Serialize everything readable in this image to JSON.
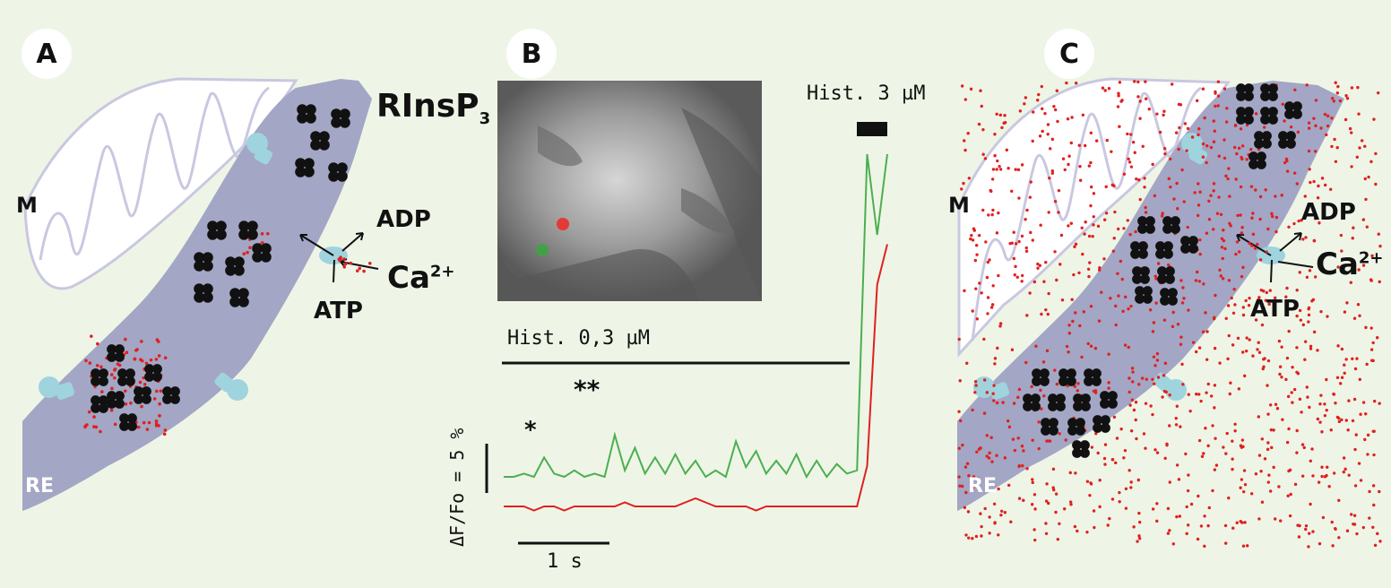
{
  "panels": {
    "a": {
      "label": "A",
      "organelle_m": "M",
      "organelle_re": "RE",
      "receptor": "RInsP",
      "receptor_sub": "3",
      "adp": "ADP",
      "ca": "Ca",
      "ca_sup": "2+",
      "atp": "ATP"
    },
    "b": {
      "label": "B",
      "hist_high": "Hist. 3 µM",
      "hist_low": "Hist. 0,3 µM",
      "star1": "*",
      "star2": "**",
      "ylabel": "ΔF/Fo = 5 %",
      "scale_time": "1 s"
    },
    "c": {
      "label": "C",
      "organelle_m": "M",
      "organelle_re": "RE",
      "adp": "ADP",
      "ca": "Ca",
      "ca_sup": "2+",
      "atp": "ATP"
    }
  },
  "colors": {
    "background": "#eef5e6",
    "er": "#a3a6c4",
    "mito": "#c9c8e0",
    "pump": "#9fd3de",
    "calcium": "#e02020",
    "green_trace": "#4caf50",
    "red_trace": "#e02020"
  },
  "chart_data": {
    "type": "line",
    "series": [
      {
        "color": "green",
        "values": [
          0,
          0,
          1,
          0,
          6,
          1,
          0,
          2,
          0,
          1,
          0,
          13,
          2,
          9,
          1,
          6,
          1,
          7,
          1,
          5,
          0,
          2,
          0,
          11,
          3,
          8,
          1,
          5,
          1,
          7,
          0,
          5,
          0,
          4,
          1,
          2,
          100,
          75,
          100
        ]
      },
      {
        "color": "red",
        "values": [
          0,
          0,
          0,
          -1,
          0,
          0,
          -1,
          0,
          0,
          0,
          0,
          0,
          1,
          0,
          0,
          0,
          0,
          0,
          1,
          2,
          1,
          0,
          0,
          0,
          0,
          -1,
          0,
          0,
          0,
          0,
          0,
          0,
          0,
          0,
          0,
          0,
          10,
          55,
          65
        ]
      }
    ]
  }
}
